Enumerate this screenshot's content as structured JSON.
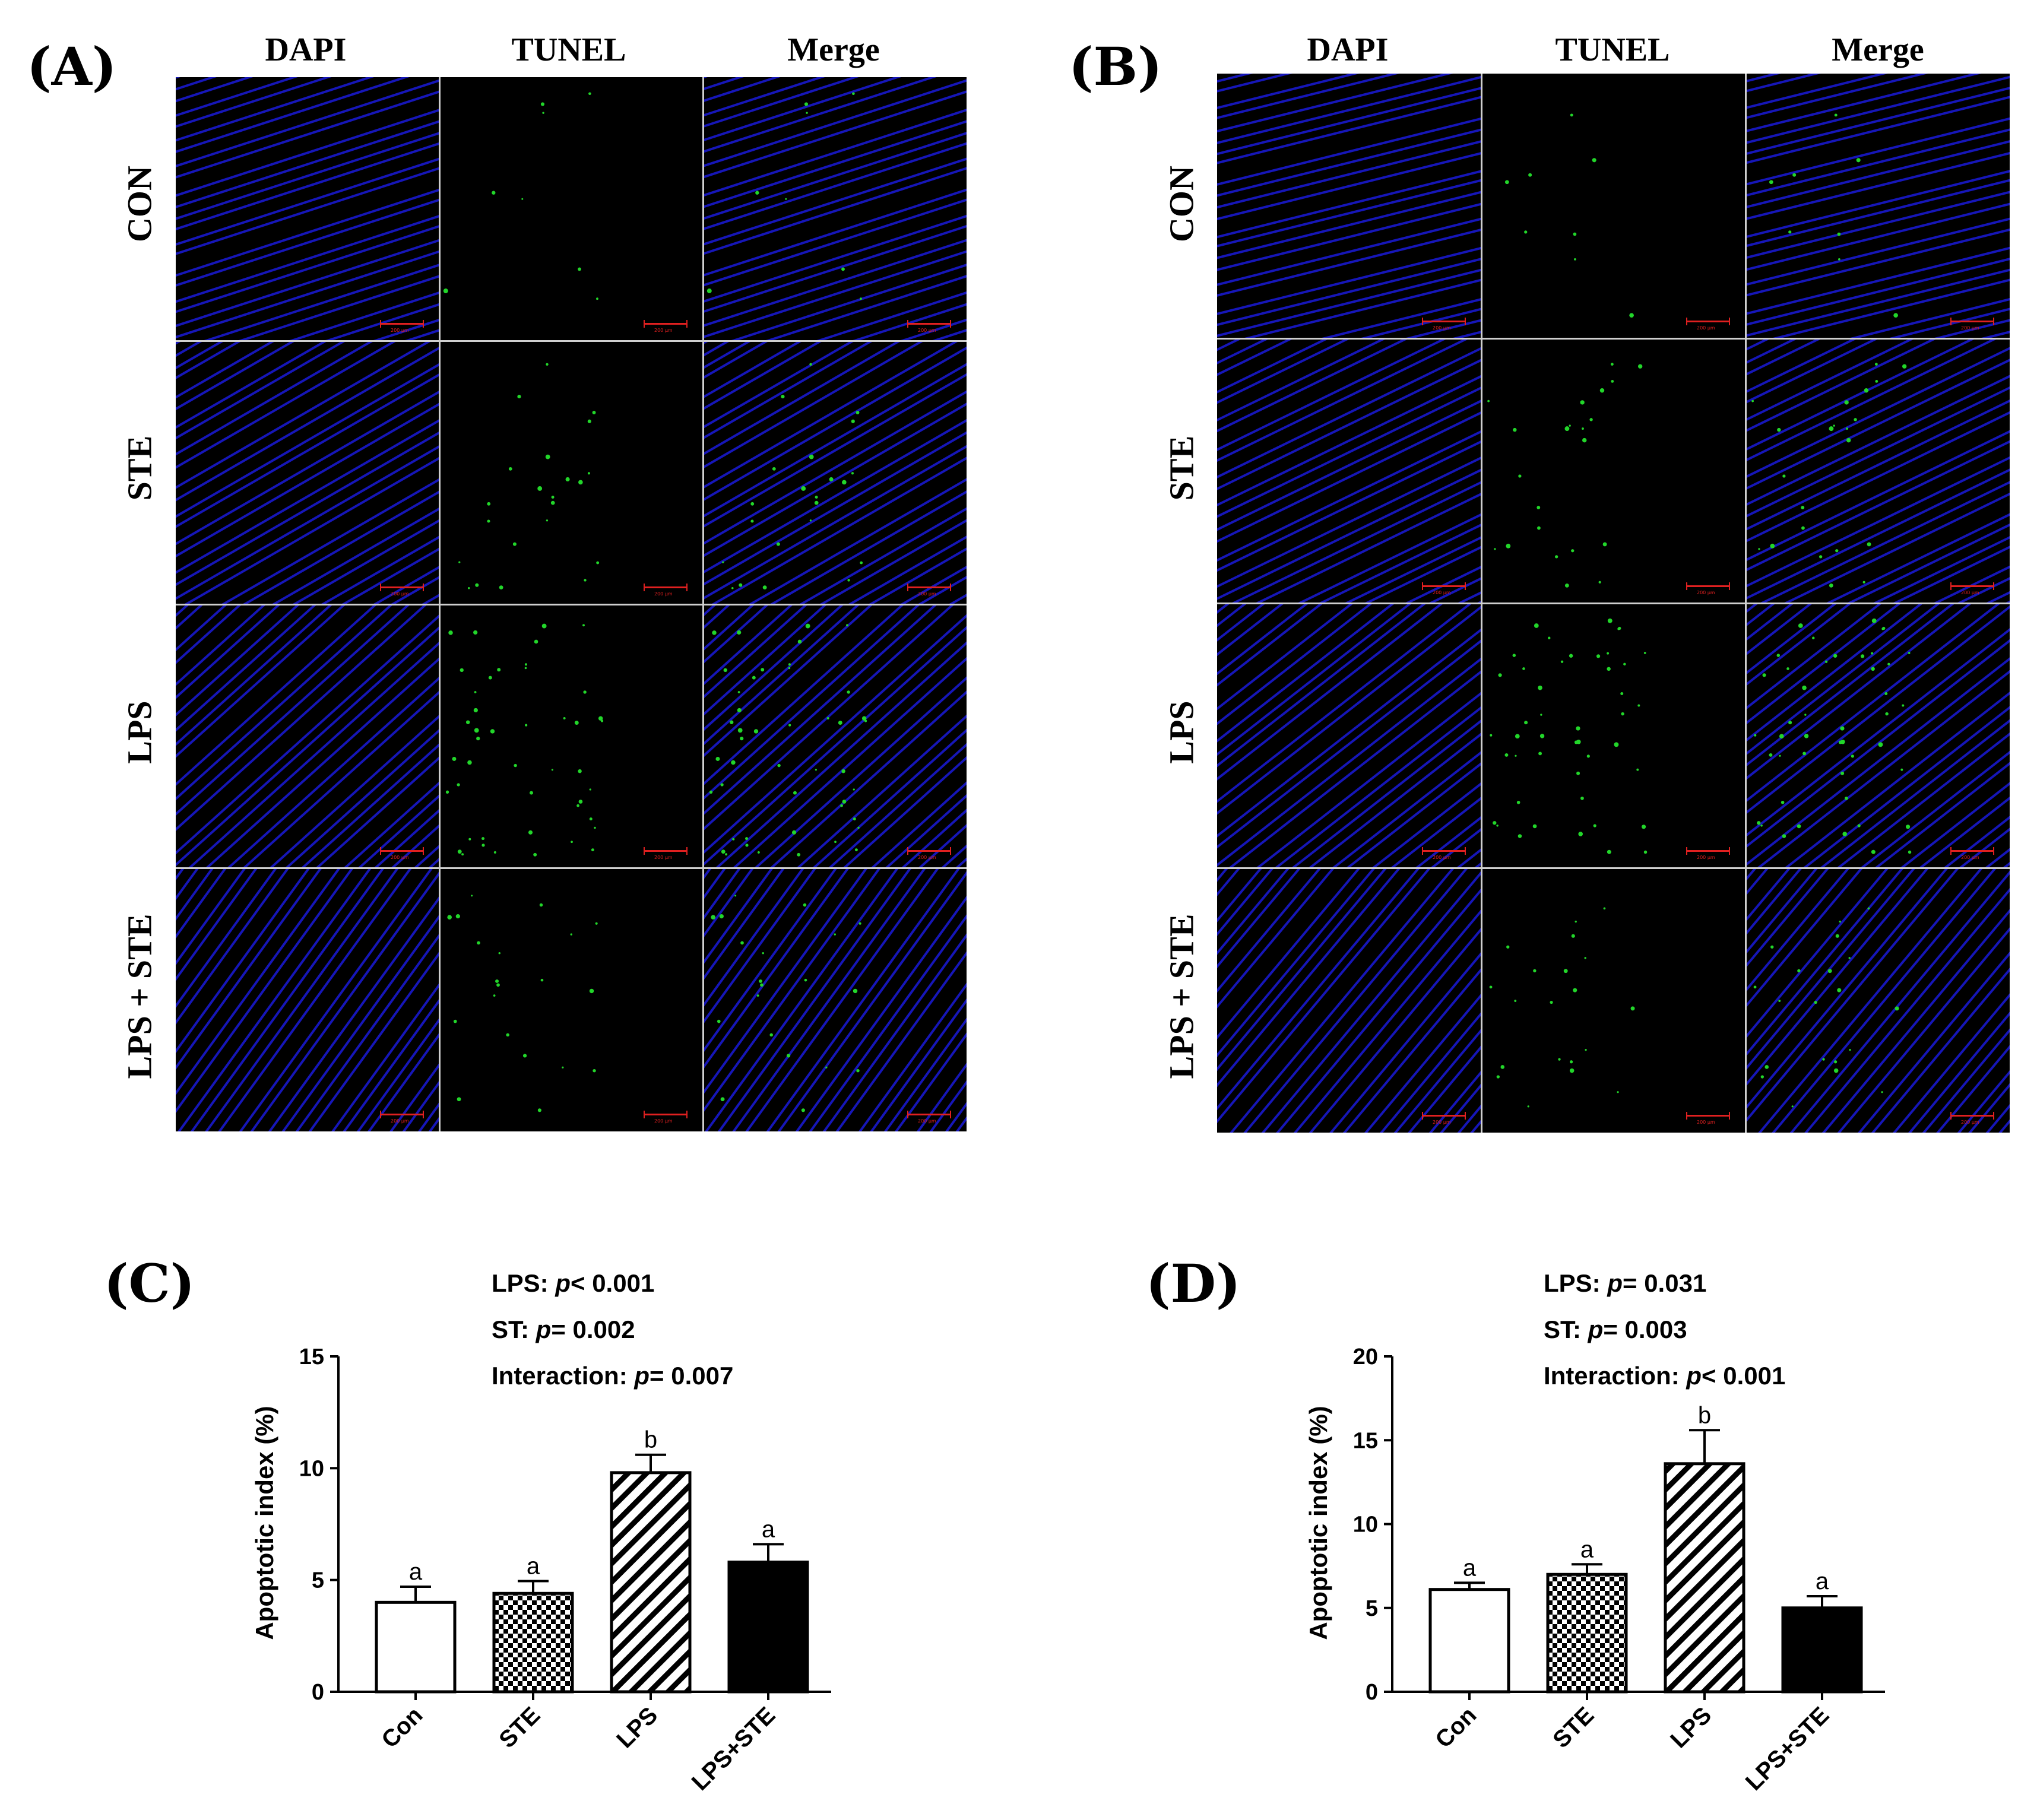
{
  "panels": {
    "A": {
      "label": "(A)"
    },
    "B": {
      "label": "(B)"
    },
    "C": {
      "label": "(C)"
    },
    "D": {
      "label": "(D)"
    }
  },
  "micrograph": {
    "columns": [
      "DAPI",
      "TUNEL",
      "Merge"
    ],
    "rows": [
      "CON",
      "STE",
      "LPS",
      "LPS + STE"
    ],
    "scale_bar_text": "200 μm",
    "colors": {
      "dapi": "#1a1ad8",
      "tunel": "#22d62a",
      "scale": "#e02020"
    }
  },
  "stats": {
    "C": {
      "lps_label": "LPS: ",
      "lps_p": "p",
      "lps_val": "< 0.001",
      "st_label": "ST: ",
      "st_p": "p",
      "st_val": "= 0.002",
      "int_label": "Interaction: ",
      "int_p": "p",
      "int_val": "= 0.007"
    },
    "D": {
      "lps_label": "LPS: ",
      "lps_p": "p",
      "lps_val": "= 0.031",
      "st_label": "ST: ",
      "st_p": "p",
      "st_val": "= 0.003",
      "int_label": "Interaction: ",
      "int_p": "p",
      "int_val": "< 0.001"
    }
  },
  "chart_data": [
    {
      "type": "bar",
      "categories": [
        "Con",
        "STE",
        "LPS",
        "LPS+STE"
      ],
      "values": [
        4.0,
        4.4,
        9.8,
        5.8
      ],
      "errors": [
        0.7,
        0.55,
        0.8,
        0.8
      ],
      "letters": [
        "a",
        "a",
        "b",
        "a"
      ],
      "fills": [
        "white",
        "checker",
        "hatch",
        "black"
      ],
      "ylabel": "Apoptotic index (%)",
      "ylim": [
        0,
        15
      ],
      "yticks": [
        0,
        5,
        10,
        15
      ]
    },
    {
      "type": "bar",
      "categories": [
        "Con",
        "STE",
        "LPS",
        "LPS+STE"
      ],
      "values": [
        6.1,
        7.0,
        13.6,
        5.0
      ],
      "errors": [
        0.4,
        0.6,
        2.0,
        0.7
      ],
      "letters": [
        "a",
        "a",
        "b",
        "a"
      ],
      "fills": [
        "white",
        "checker",
        "hatch",
        "black"
      ],
      "ylabel": "Apoptotic index (%)",
      "ylim": [
        0,
        20
      ],
      "yticks": [
        0,
        5,
        10,
        15,
        20
      ]
    }
  ]
}
